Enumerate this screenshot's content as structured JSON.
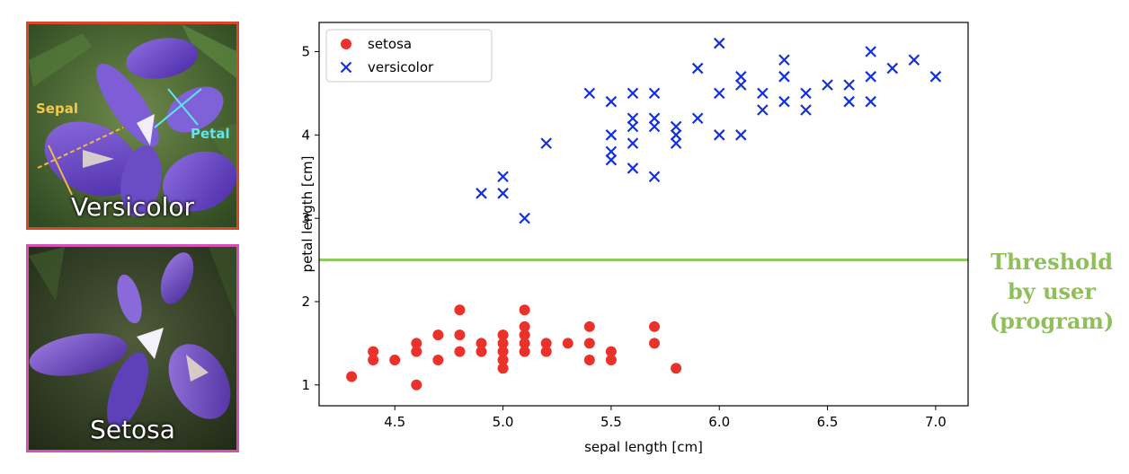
{
  "photos": {
    "versicolor": {
      "caption": "Versicolor",
      "sepal_label": "Sepal",
      "petal_label": "Petal",
      "border_color": "#d9472b"
    },
    "setosa": {
      "caption": "Setosa",
      "border_color": "#d64fb6"
    }
  },
  "annotation": {
    "lines": [
      "Threshold",
      "by user",
      "(program)"
    ],
    "color": "#8fbf5a"
  },
  "chart_data": {
    "type": "scatter",
    "xlabel": "sepal length [cm]",
    "ylabel": "petal length [cm]",
    "xlim": [
      4.15,
      7.15
    ],
    "ylim": [
      0.75,
      5.35
    ],
    "xticks": [
      4.5,
      5.0,
      5.5,
      6.0,
      6.5,
      7.0
    ],
    "yticks": [
      1,
      2,
      3,
      4,
      5
    ],
    "legend": "top-left",
    "threshold": {
      "y": 2.5,
      "color": "#8fca5c"
    },
    "series": [
      {
        "name": "setosa",
        "marker": "circle",
        "color": "#e8322a",
        "points": [
          [
            4.3,
            1.1
          ],
          [
            4.4,
            1.4
          ],
          [
            4.4,
            1.3
          ],
          [
            4.5,
            1.3
          ],
          [
            4.6,
            1.5
          ],
          [
            4.6,
            1.4
          ],
          [
            4.6,
            1.0
          ],
          [
            4.7,
            1.6
          ],
          [
            4.7,
            1.3
          ],
          [
            4.8,
            1.9
          ],
          [
            4.8,
            1.6
          ],
          [
            4.8,
            1.4
          ],
          [
            4.9,
            1.5
          ],
          [
            4.9,
            1.4
          ],
          [
            5.0,
            1.6
          ],
          [
            5.0,
            1.5
          ],
          [
            5.0,
            1.4
          ],
          [
            5.0,
            1.3
          ],
          [
            5.0,
            1.2
          ],
          [
            5.1,
            1.9
          ],
          [
            5.1,
            1.7
          ],
          [
            5.1,
            1.6
          ],
          [
            5.1,
            1.5
          ],
          [
            5.1,
            1.4
          ],
          [
            5.2,
            1.5
          ],
          [
            5.2,
            1.4
          ],
          [
            5.3,
            1.5
          ],
          [
            5.4,
            1.7
          ],
          [
            5.4,
            1.5
          ],
          [
            5.4,
            1.3
          ],
          [
            5.5,
            1.4
          ],
          [
            5.5,
            1.3
          ],
          [
            5.7,
            1.7
          ],
          [
            5.7,
            1.5
          ],
          [
            5.8,
            1.2
          ]
        ]
      },
      {
        "name": "versicolor",
        "marker": "x",
        "color": "#1230e0",
        "points": [
          [
            4.9,
            3.3
          ],
          [
            5.0,
            3.5
          ],
          [
            5.0,
            3.3
          ],
          [
            5.1,
            3.0
          ],
          [
            5.2,
            3.9
          ],
          [
            5.4,
            4.5
          ],
          [
            5.5,
            4.4
          ],
          [
            5.5,
            4.0
          ],
          [
            5.5,
            3.8
          ],
          [
            5.5,
            3.7
          ],
          [
            5.6,
            4.5
          ],
          [
            5.6,
            4.2
          ],
          [
            5.6,
            4.1
          ],
          [
            5.6,
            3.9
          ],
          [
            5.6,
            3.6
          ],
          [
            5.7,
            4.5
          ],
          [
            5.7,
            4.2
          ],
          [
            5.7,
            4.1
          ],
          [
            5.7,
            3.5
          ],
          [
            5.8,
            4.1
          ],
          [
            5.8,
            4.0
          ],
          [
            5.8,
            3.9
          ],
          [
            5.9,
            4.8
          ],
          [
            5.9,
            4.2
          ],
          [
            6.0,
            5.1
          ],
          [
            6.0,
            4.5
          ],
          [
            6.0,
            4.0
          ],
          [
            6.1,
            4.7
          ],
          [
            6.1,
            4.6
          ],
          [
            6.1,
            4.0
          ],
          [
            6.2,
            4.5
          ],
          [
            6.2,
            4.3
          ],
          [
            6.3,
            4.9
          ],
          [
            6.3,
            4.7
          ],
          [
            6.3,
            4.4
          ],
          [
            6.4,
            4.5
          ],
          [
            6.4,
            4.3
          ],
          [
            6.5,
            4.6
          ],
          [
            6.6,
            4.6
          ],
          [
            6.6,
            4.4
          ],
          [
            6.7,
            5.0
          ],
          [
            6.7,
            4.7
          ],
          [
            6.7,
            4.4
          ],
          [
            6.8,
            4.8
          ],
          [
            6.9,
            4.9
          ],
          [
            7.0,
            4.7
          ]
        ]
      }
    ]
  }
}
